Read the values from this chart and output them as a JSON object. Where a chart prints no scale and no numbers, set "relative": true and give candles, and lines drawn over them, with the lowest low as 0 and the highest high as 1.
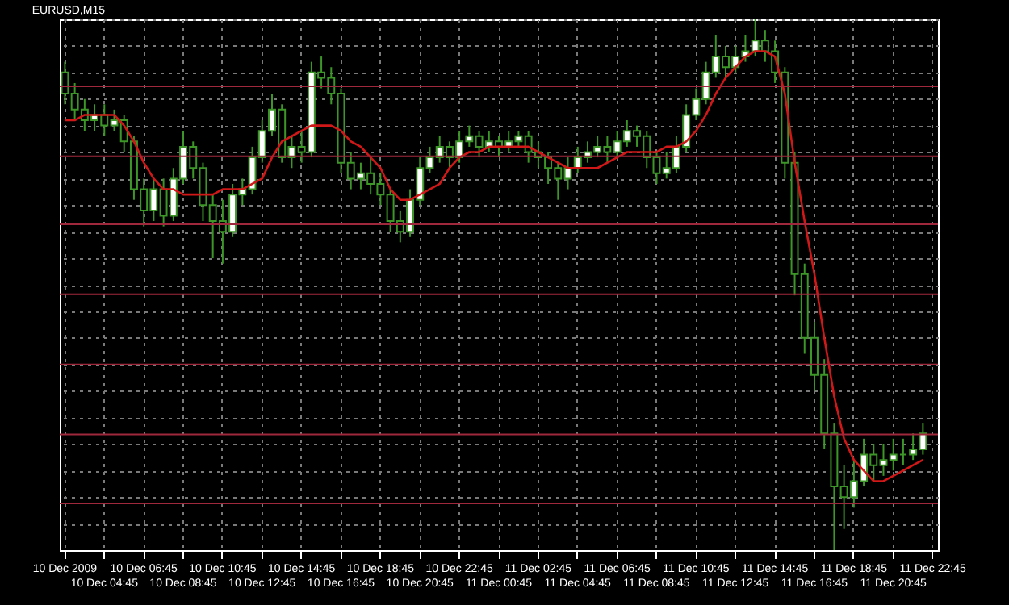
{
  "chart_data": {
    "type": "candlestick",
    "title": "EURUSD,M15",
    "relative": true,
    "grid": true,
    "categories": [
      "10 Dec 2009",
      null,
      null,
      null,
      "10 Dec 04:45",
      null,
      null,
      null,
      "10 Dec 06:45",
      null,
      null,
      null,
      "10 Dec 08:45",
      null,
      null,
      null,
      "10 Dec 10:45",
      null,
      null,
      null,
      "10 Dec 12:45",
      null,
      null,
      null,
      "10 Dec 14:45",
      null,
      null,
      null,
      "10 Dec 16:45",
      null,
      null,
      null,
      "10 Dec 18:45",
      null,
      null,
      null,
      "10 Dec 20:45",
      null,
      null,
      null,
      "10 Dec 22:45",
      null,
      null,
      null,
      "11 Dec 00:45",
      null,
      null,
      null,
      "11 Dec 02:45",
      null,
      null,
      null,
      "11 Dec 04:45",
      null,
      null,
      null,
      "11 Dec 06:45",
      null,
      null,
      null,
      "11 Dec 08:45",
      null,
      null,
      null,
      "11 Dec 10:45",
      null,
      null,
      null,
      "11 Dec 12:45",
      null,
      null,
      null,
      "11 Dec 14:45",
      null,
      null,
      null,
      "11 Dec 16:45",
      null,
      null,
      null,
      "11 Dec 18:45",
      null,
      null,
      null,
      "11 Dec 20:45",
      null,
      null,
      null,
      "11 Dec 22:45"
    ],
    "series": [
      {
        "type": "candlestick",
        "color": "#3c9628",
        "ohlc": [
          [
            0.9,
            0.92,
            0.84,
            0.86
          ],
          [
            0.86,
            0.88,
            0.81,
            0.83
          ],
          [
            0.83,
            0.85,
            0.79,
            0.81
          ],
          [
            0.81,
            0.84,
            0.79,
            0.82
          ],
          [
            0.82,
            0.84,
            0.78,
            0.8
          ],
          [
            0.8,
            0.83,
            0.79,
            0.81
          ],
          [
            0.81,
            0.82,
            0.75,
            0.77
          ],
          [
            0.77,
            0.78,
            0.66,
            0.68
          ],
          [
            0.68,
            0.7,
            0.61,
            0.64
          ],
          [
            0.64,
            0.7,
            0.62,
            0.68
          ],
          [
            0.68,
            0.7,
            0.61,
            0.63
          ],
          [
            0.63,
            0.72,
            0.62,
            0.7
          ],
          [
            0.7,
            0.79,
            0.69,
            0.76
          ],
          [
            0.76,
            0.77,
            0.7,
            0.72
          ],
          [
            0.72,
            0.73,
            0.62,
            0.65
          ],
          [
            0.65,
            0.67,
            0.55,
            0.62
          ],
          [
            0.62,
            0.66,
            0.54,
            0.6
          ],
          [
            0.6,
            0.69,
            0.59,
            0.67
          ],
          [
            0.67,
            0.7,
            0.65,
            0.68
          ],
          [
            0.68,
            0.76,
            0.67,
            0.74
          ],
          [
            0.74,
            0.81,
            0.73,
            0.79
          ],
          [
            0.79,
            0.86,
            0.78,
            0.83
          ],
          [
            0.83,
            0.84,
            0.73,
            0.74
          ],
          [
            0.74,
            0.78,
            0.72,
            0.76
          ],
          [
            0.76,
            0.79,
            0.73,
            0.75
          ],
          [
            0.75,
            0.92,
            0.74,
            0.9
          ],
          [
            0.9,
            0.93,
            0.87,
            0.89
          ],
          [
            0.89,
            0.91,
            0.84,
            0.86
          ],
          [
            0.86,
            0.87,
            0.71,
            0.73
          ],
          [
            0.73,
            0.75,
            0.68,
            0.7
          ],
          [
            0.7,
            0.73,
            0.68,
            0.71
          ],
          [
            0.71,
            0.74,
            0.67,
            0.69
          ],
          [
            0.69,
            0.71,
            0.65,
            0.67
          ],
          [
            0.67,
            0.68,
            0.6,
            0.62
          ],
          [
            0.62,
            0.64,
            0.58,
            0.6
          ],
          [
            0.6,
            0.68,
            0.59,
            0.66
          ],
          [
            0.66,
            0.74,
            0.65,
            0.72
          ],
          [
            0.72,
            0.76,
            0.71,
            0.74
          ],
          [
            0.74,
            0.78,
            0.73,
            0.76
          ],
          [
            0.76,
            0.77,
            0.72,
            0.74
          ],
          [
            0.74,
            0.79,
            0.73,
            0.77
          ],
          [
            0.77,
            0.8,
            0.76,
            0.78
          ],
          [
            0.78,
            0.79,
            0.74,
            0.76
          ],
          [
            0.76,
            0.79,
            0.75,
            0.77
          ],
          [
            0.77,
            0.78,
            0.74,
            0.76
          ],
          [
            0.76,
            0.79,
            0.75,
            0.77
          ],
          [
            0.77,
            0.79,
            0.76,
            0.78
          ],
          [
            0.78,
            0.79,
            0.73,
            0.75
          ],
          [
            0.75,
            0.77,
            0.72,
            0.74
          ],
          [
            0.74,
            0.75,
            0.69,
            0.72
          ],
          [
            0.72,
            0.73,
            0.66,
            0.7
          ],
          [
            0.7,
            0.74,
            0.68,
            0.72
          ],
          [
            0.72,
            0.76,
            0.71,
            0.74
          ],
          [
            0.74,
            0.77,
            0.73,
            0.75
          ],
          [
            0.75,
            0.78,
            0.74,
            0.76
          ],
          [
            0.76,
            0.78,
            0.73,
            0.75
          ],
          [
            0.75,
            0.79,
            0.74,
            0.77
          ],
          [
            0.77,
            0.81,
            0.76,
            0.79
          ],
          [
            0.79,
            0.8,
            0.76,
            0.78
          ],
          [
            0.78,
            0.79,
            0.72,
            0.74
          ],
          [
            0.74,
            0.75,
            0.69,
            0.71
          ],
          [
            0.71,
            0.75,
            0.7,
            0.72
          ],
          [
            0.72,
            0.78,
            0.71,
            0.76
          ],
          [
            0.76,
            0.84,
            0.75,
            0.82
          ],
          [
            0.82,
            0.87,
            0.81,
            0.85
          ],
          [
            0.85,
            0.92,
            0.84,
            0.9
          ],
          [
            0.9,
            0.97,
            0.89,
            0.93
          ],
          [
            0.93,
            0.95,
            0.89,
            0.91
          ],
          [
            0.91,
            0.95,
            0.9,
            0.93
          ],
          [
            0.93,
            0.97,
            0.92,
            0.94
          ],
          [
            0.94,
            1.0,
            0.93,
            0.96
          ],
          [
            0.96,
            0.98,
            0.92,
            0.94
          ],
          [
            0.94,
            0.96,
            0.88,
            0.9
          ],
          [
            0.9,
            0.91,
            0.7,
            0.73
          ],
          [
            0.73,
            0.75,
            0.48,
            0.52
          ],
          [
            0.52,
            0.54,
            0.37,
            0.4
          ],
          [
            0.4,
            0.43,
            0.3,
            0.33
          ],
          [
            0.33,
            0.36,
            0.19,
            0.22
          ],
          [
            0.22,
            0.24,
            0.0,
            0.12
          ],
          [
            0.12,
            0.16,
            0.04,
            0.1
          ],
          [
            0.1,
            0.17,
            0.08,
            0.13
          ],
          [
            0.13,
            0.21,
            0.12,
            0.18
          ],
          [
            0.18,
            0.2,
            0.13,
            0.16
          ],
          [
            0.16,
            0.2,
            0.14,
            0.17
          ],
          [
            0.17,
            0.21,
            0.15,
            0.18
          ],
          [
            0.18,
            0.21,
            0.16,
            0.18
          ],
          [
            0.18,
            0.22,
            0.17,
            0.19
          ],
          [
            0.19,
            0.24,
            0.18,
            0.22
          ],
          null
        ]
      },
      {
        "type": "line",
        "color": "#d01818",
        "values": [
          0.81,
          0.81,
          0.82,
          0.82,
          0.82,
          0.82,
          0.8,
          0.77,
          0.73,
          0.7,
          0.68,
          0.68,
          0.67,
          0.67,
          0.67,
          0.67,
          0.68,
          0.68,
          0.68,
          0.69,
          0.7,
          0.74,
          0.77,
          0.78,
          0.79,
          0.8,
          0.8,
          0.8,
          0.79,
          0.77,
          0.76,
          0.74,
          0.72,
          0.68,
          0.66,
          0.66,
          0.67,
          0.68,
          0.69,
          0.72,
          0.74,
          0.75,
          0.75,
          0.76,
          0.76,
          0.76,
          0.76,
          0.76,
          0.75,
          0.74,
          0.73,
          0.72,
          0.72,
          0.72,
          0.72,
          0.73,
          0.74,
          0.75,
          0.75,
          0.75,
          0.75,
          0.76,
          0.76,
          0.77,
          0.79,
          0.82,
          0.86,
          0.89,
          0.91,
          0.93,
          0.94,
          0.94,
          0.93,
          0.86,
          0.73,
          0.62,
          0.52,
          0.4,
          0.29,
          0.21,
          0.17,
          0.15,
          0.13,
          0.13,
          0.14,
          0.15,
          0.16,
          0.17,
          null
        ]
      }
    ],
    "ref_lines": [
      {
        "axis": "y",
        "value": 0.874,
        "color": "#a0283c"
      },
      {
        "axis": "y",
        "value": 0.742,
        "color": "#a0283c"
      },
      {
        "axis": "y",
        "value": 0.614,
        "color": "#a0283c"
      },
      {
        "axis": "y",
        "value": 0.482,
        "color": "#a0283c"
      },
      {
        "axis": "y",
        "value": 0.35,
        "color": "#a0283c"
      },
      {
        "axis": "y",
        "value": 0.218,
        "color": "#a0283c"
      },
      {
        "axis": "y",
        "value": 0.088,
        "color": "#a0283c"
      }
    ]
  }
}
